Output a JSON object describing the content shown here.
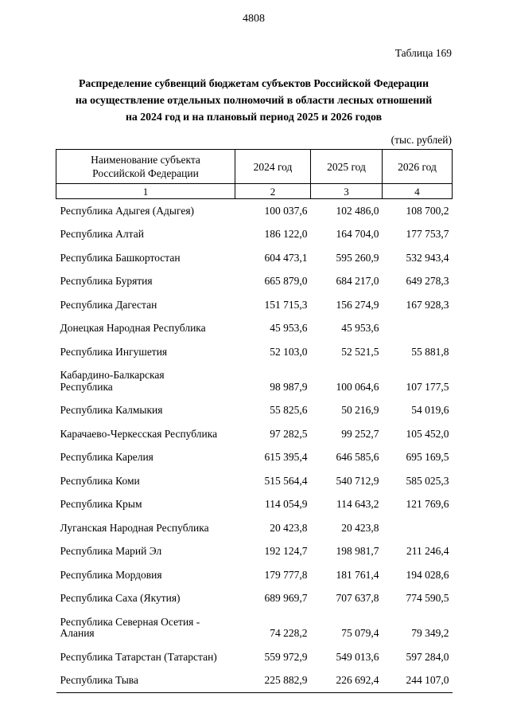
{
  "page": {
    "number": "4808",
    "table_label": "Таблица 169",
    "title_lines": [
      "Распределение субвенций бюджетам субъектов Российской Федерации",
      "на осуществление отдельных полномочий в области лесных отношений",
      "на 2024 год и на плановый период 2025 и 2026 годов"
    ],
    "units": "(тыс. рублей)"
  },
  "table": {
    "header": {
      "name_col": "Наименование субъекта\nРоссийской Федерации",
      "year_cols": [
        "2024 год",
        "2025 год",
        "2026 год"
      ]
    },
    "col_numbers": [
      "1",
      "2",
      "3",
      "4"
    ],
    "rows": [
      {
        "name": "Республика Адыгея (Адыгея)",
        "y2024": "100 037,6",
        "y2025": "102 486,0",
        "y2026": "108 700,2"
      },
      {
        "name": "Республика Алтай",
        "y2024": "186 122,0",
        "y2025": "164 704,0",
        "y2026": "177 753,7"
      },
      {
        "name": "Республика Башкортостан",
        "y2024": "604 473,1",
        "y2025": "595 260,9",
        "y2026": "532 943,4"
      },
      {
        "name": "Республика Бурятия",
        "y2024": "665 879,0",
        "y2025": "684 217,0",
        "y2026": "649 278,3"
      },
      {
        "name": "Республика Дагестан",
        "y2024": "151 715,3",
        "y2025": "156 274,9",
        "y2026": "167 928,3"
      },
      {
        "name": "Донецкая Народная Республика",
        "y2024": "45 953,6",
        "y2025": "45 953,6",
        "y2026": ""
      },
      {
        "name": "Республика Ингушетия",
        "y2024": "52 103,0",
        "y2025": "52 521,5",
        "y2026": "55 881,8"
      },
      {
        "name": "Кабардино-Балкарская\nРеспублика",
        "y2024": "98 987,9",
        "y2025": "100 064,6",
        "y2026": "107 177,5"
      },
      {
        "name": "Республика Калмыкия",
        "y2024": "55 825,6",
        "y2025": "50 216,9",
        "y2026": "54 019,6"
      },
      {
        "name": "Карачаево-Черкесская Республика",
        "y2024": "97 282,5",
        "y2025": "99 252,7",
        "y2026": "105 452,0"
      },
      {
        "name": "Республика Карелия",
        "y2024": "615 395,4",
        "y2025": "646 585,6",
        "y2026": "695 169,5"
      },
      {
        "name": "Республика Коми",
        "y2024": "515 564,4",
        "y2025": "540 712,9",
        "y2026": "585 025,3"
      },
      {
        "name": "Республика Крым",
        "y2024": "114 054,9",
        "y2025": "114 643,2",
        "y2026": "121 769,6"
      },
      {
        "name": "Луганская Народная Республика",
        "y2024": "20 423,8",
        "y2025": "20 423,8",
        "y2026": ""
      },
      {
        "name": "Республика Марий Эл",
        "y2024": "192 124,7",
        "y2025": "198 981,7",
        "y2026": "211 246,4"
      },
      {
        "name": "Республика Мордовия",
        "y2024": "179 777,8",
        "y2025": "181 761,4",
        "y2026": "194 028,6"
      },
      {
        "name": "Республика Саха (Якутия)",
        "y2024": "689 969,7",
        "y2025": "707 637,8",
        "y2026": "774 590,5"
      },
      {
        "name": "Республика Северная Осетия -\nАлания",
        "y2024": "74 228,2",
        "y2025": "75 079,4",
        "y2026": "79 349,2"
      },
      {
        "name": "Республика Татарстан (Татарстан)",
        "y2024": "559 972,9",
        "y2025": "549 013,6",
        "y2026": "597 284,0"
      },
      {
        "name": "Республика Тыва",
        "y2024": "225 882,9",
        "y2025": "226 692,4",
        "y2026": "244 107,0"
      }
    ]
  }
}
